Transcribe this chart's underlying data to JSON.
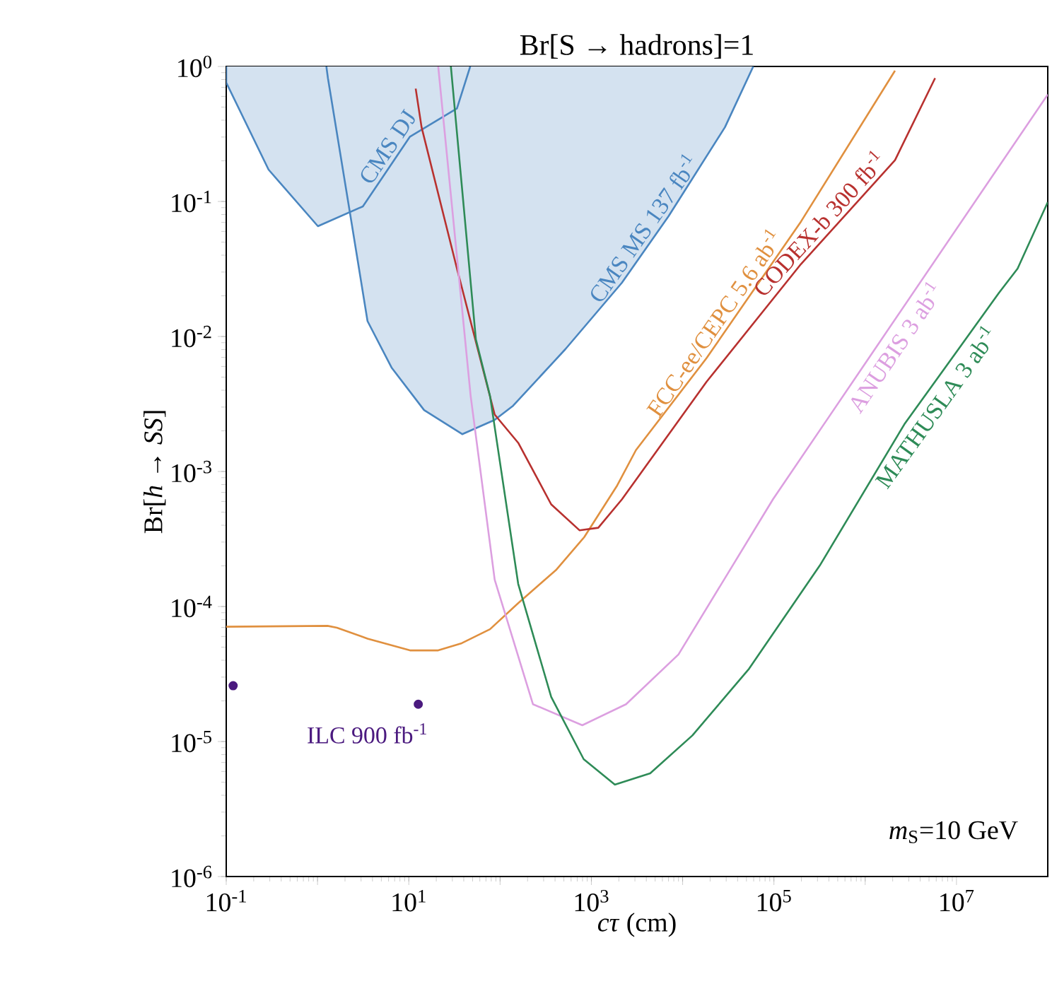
{
  "chart_data": {
    "type": "line",
    "title": "Br[S → hadrons]=1",
    "xlabel": "*cτ* (cm)",
    "ylabel": "Br[*h* → *SS*]",
    "log": "xy",
    "xlim": [
      0.1,
      100000000.0
    ],
    "ylim": [
      1e-06,
      1
    ],
    "xticks": [
      {
        "value": 0.1,
        "label": "10$^{-1}$"
      },
      {
        "value": 1,
        "label": null
      },
      {
        "value": 10,
        "label": "10$^{1}$"
      },
      {
        "value": 100,
        "label": null
      },
      {
        "value": 1000,
        "label": "10$^{3}$"
      },
      {
        "value": 10000,
        "label": null
      },
      {
        "value": 100000,
        "label": "10$^{5}$"
      },
      {
        "value": 1000000,
        "label": null
      },
      {
        "value": 10000000,
        "label": "10$^{7}$"
      }
    ],
    "yticks": [
      {
        "value": 1e-06,
        "label": "10$^{-6}$"
      },
      {
        "value": 1e-05,
        "label": "10$^{-5}$"
      },
      {
        "value": 0.0001,
        "label": "10$^{-4}$"
      },
      {
        "value": 0.001,
        "label": "10$^{-3}$"
      },
      {
        "value": 0.01,
        "label": "10$^{-2}$"
      },
      {
        "value": 0.1,
        "label": "10$^{-1}$"
      },
      {
        "value": 1,
        "label": "10$^{0}$"
      }
    ],
    "annotations": [
      "*m*$_{S}$=10 GeV"
    ],
    "series": [
      {
        "name": "CMS DJ",
        "type": "area",
        "color": "#4a86c0",
        "x": [
          0.1,
          0.1,
          0.291,
          1.01,
          3.14,
          10.3,
          33.7,
          47.1
        ],
        "values": [
          1.0,
          0.76,
          0.172,
          0.0656,
          0.0919,
          0.302,
          0.489,
          1.0
        ]
      },
      {
        "name": "CMS MS 137 fb$^{-1}$",
        "type": "area",
        "color": "#4a86c0",
        "x": [
          1.25,
          1.3,
          2.22,
          3.53,
          6.47,
          14.7,
          38.5,
          87.3,
          139,
          519,
          2160,
          7000,
          29100,
          59400
        ],
        "values": [
          1.0,
          0.82,
          0.0897,
          0.013,
          0.00589,
          0.00285,
          0.00189,
          0.00241,
          0.00307,
          0.00805,
          0.025,
          0.0776,
          0.355,
          1.0
        ]
      },
      {
        "name": "FCC-ee/CEPC 5.6 ab$^{-1}$",
        "color": "#e0903f",
        "x": [
          0.1,
          1.29,
          1.63,
          3.53,
          10.3,
          21.0,
          38.0,
          77.6,
          158,
          409,
          834,
          1920,
          3080,
          18300,
          198000,
          2120000
        ],
        "values": [
          7.08e-05,
          7.19e-05,
          6.97e-05,
          5.78e-05,
          4.73e-05,
          4.73e-05,
          5.35e-05,
          6.79e-05,
          0.000106,
          0.000186,
          0.000326,
          0.000789,
          0.00144,
          0.00692,
          0.071,
          0.93
        ]
      },
      {
        "name": "CODEX-b 300 fb$^{-1}$",
        "color": "#b8312f",
        "x": [
          11.9,
          13.8,
          33.7,
          87.3,
          158,
          363,
          741,
          1190,
          2160,
          18300,
          198000,
          2120000,
          5830000
        ],
        "values": [
          0.685,
          0.355,
          0.0318,
          0.00264,
          0.00163,
          0.000571,
          0.000367,
          0.000383,
          0.000621,
          0.00462,
          0.0344,
          0.202,
          0.82
        ]
      },
      {
        "name": "ANUBIS 3 ab$^{-1}$",
        "color": "#dc9fe0",
        "x": [
          21.0,
          47.6,
          87.3,
          229,
          796,
          2400,
          9000,
          98000,
          353000,
          100000000
        ],
        "values": [
          1.0,
          0.00363,
          0.000158,
          1.89e-05,
          1.32e-05,
          1.89e-05,
          4.41e-05,
          0.000625,
          0.00224,
          0.62
        ]
      },
      {
        "name": "MATHUSLA 3 ab$^{-1}$",
        "color": "#2e8b57",
        "x": [
          28.9,
          54.3,
          77.6,
          158,
          363,
          824,
          1810,
          4410,
          12800,
          53400,
          318000,
          2690000,
          29300000,
          46700000,
          100000000
        ],
        "values": [
          1.0,
          0.00953,
          0.00363,
          0.000147,
          2.14e-05,
          7.4e-06,
          4.8e-06,
          5.81e-06,
          1.11e-05,
          3.46e-05,
          0.000201,
          0.00224,
          0.0211,
          0.0318,
          0.0989
        ]
      },
      {
        "name": "ILC 900 fb$^{-1}$",
        "type": "scatter",
        "marker": "circle",
        "color": "#4b1a7f",
        "x": [
          0.119,
          12.7
        ],
        "values": [
          2.59e-05,
          1.89e-05
        ]
      }
    ]
  }
}
